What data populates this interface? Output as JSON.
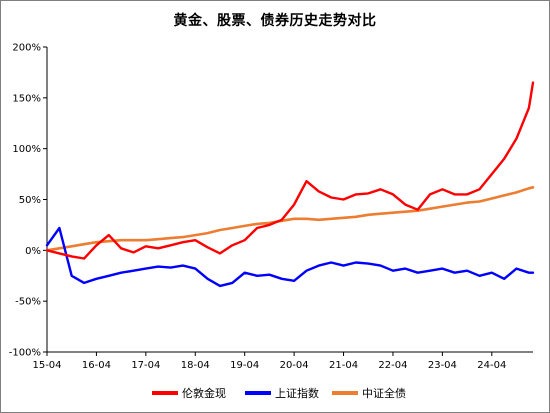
{
  "chart_data": {
    "type": "line",
    "title": "黄金、股票、债券历史走势对比",
    "xlabel": "",
    "ylabel": "",
    "x_ticks": [
      "15-04",
      "16-04",
      "17-04",
      "18-04",
      "19-04",
      "20-04",
      "21-04",
      "22-04",
      "23-04",
      "24-04"
    ],
    "x_range": [
      "2015-04",
      "2025-02"
    ],
    "y_ticks": [
      "200%",
      "150%",
      "100%",
      "50%",
      "0%",
      "-50%",
      "-100%"
    ],
    "ylim": [
      -100,
      200
    ],
    "grid": false,
    "legend_position": "bottom",
    "x": [
      "2015-04",
      "2015-07",
      "2015-10",
      "2016-01",
      "2016-04",
      "2016-07",
      "2016-10",
      "2017-01",
      "2017-04",
      "2017-07",
      "2017-10",
      "2018-01",
      "2018-04",
      "2018-07",
      "2018-10",
      "2019-01",
      "2019-04",
      "2019-07",
      "2019-10",
      "2020-01",
      "2020-04",
      "2020-07",
      "2020-10",
      "2021-01",
      "2021-04",
      "2021-07",
      "2021-10",
      "2022-01",
      "2022-04",
      "2022-07",
      "2022-10",
      "2023-01",
      "2023-04",
      "2023-07",
      "2023-10",
      "2024-01",
      "2024-04",
      "2024-07",
      "2024-10",
      "2025-01",
      "2025-02"
    ],
    "series": [
      {
        "name": "伦敦金现",
        "color": "#ff0000",
        "values": [
          0,
          -3,
          -6,
          -8,
          5,
          15,
          2,
          -2,
          4,
          2,
          5,
          8,
          10,
          3,
          -3,
          5,
          10,
          22,
          25,
          30,
          45,
          68,
          58,
          52,
          50,
          55,
          56,
          60,
          55,
          45,
          40,
          55,
          60,
          55,
          55,
          60,
          75,
          90,
          110,
          140,
          165
        ]
      },
      {
        "name": "上证指数",
        "color": "#0000ff",
        "values": [
          5,
          22,
          -25,
          -32,
          -28,
          -25,
          -22,
          -20,
          -18,
          -16,
          -17,
          -15,
          -18,
          -28,
          -35,
          -32,
          -22,
          -25,
          -24,
          -28,
          -30,
          -20,
          -15,
          -12,
          -15,
          -12,
          -13,
          -15,
          -20,
          -18,
          -22,
          -20,
          -18,
          -22,
          -20,
          -25,
          -22,
          -28,
          -18,
          -22,
          -22
        ]
      },
      {
        "name": "中证全债",
        "color": "#ed7d31",
        "values": [
          0,
          2,
          4,
          6,
          8,
          9,
          10,
          10,
          10,
          11,
          12,
          13,
          15,
          17,
          20,
          22,
          24,
          26,
          27,
          29,
          31,
          31,
          30,
          31,
          32,
          33,
          35,
          36,
          37,
          38,
          39,
          41,
          43,
          45,
          47,
          48,
          51,
          54,
          57,
          61,
          62
        ]
      }
    ]
  }
}
